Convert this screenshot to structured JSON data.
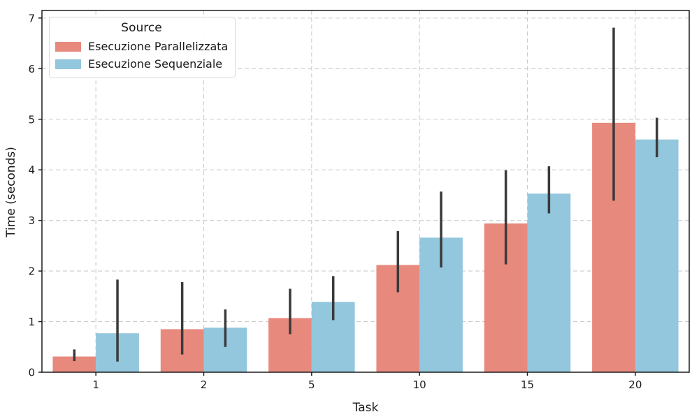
{
  "figure": {
    "background": "#ffffff"
  },
  "chart_data": {
    "type": "bar",
    "title": "",
    "xlabel": "Task",
    "ylabel": "Time (seconds)",
    "categories": [
      "1",
      "2",
      "5",
      "10",
      "15",
      "20"
    ],
    "series": [
      {
        "name": "Esecuzione Parallelizzata",
        "color": "#e8897e",
        "values": [
          0.31,
          0.85,
          1.07,
          2.12,
          2.94,
          4.93
        ],
        "err_low": [
          0.22,
          0.35,
          0.75,
          1.58,
          2.13,
          3.39
        ],
        "err_high": [
          0.45,
          1.78,
          1.65,
          2.79,
          3.99,
          6.81
        ]
      },
      {
        "name": "Esecuzione Sequenziale",
        "color": "#92c7dd",
        "values": [
          0.77,
          0.88,
          1.39,
          2.66,
          3.53,
          4.6
        ],
        "err_low": [
          0.21,
          0.5,
          1.03,
          2.07,
          3.14,
          4.25
        ],
        "err_high": [
          1.83,
          1.24,
          1.9,
          3.57,
          4.07,
          5.03
        ]
      }
    ],
    "yticks": [
      "0",
      "1",
      "2",
      "3",
      "4",
      "5",
      "6",
      "7"
    ],
    "ylim": [
      0,
      7.15
    ],
    "bar_group_width_ratio": 0.8,
    "grid": {
      "visible": true,
      "axes": "both",
      "style": "dashed",
      "color": "#cccccc"
    },
    "legend": {
      "title": "Source",
      "position": "upper-left"
    },
    "style": {
      "error_bar_color": "#3a3a3a",
      "error_bar_width": 3.5,
      "spine_color": "#1c1c1c",
      "text_color": "#1a1a1a"
    }
  }
}
